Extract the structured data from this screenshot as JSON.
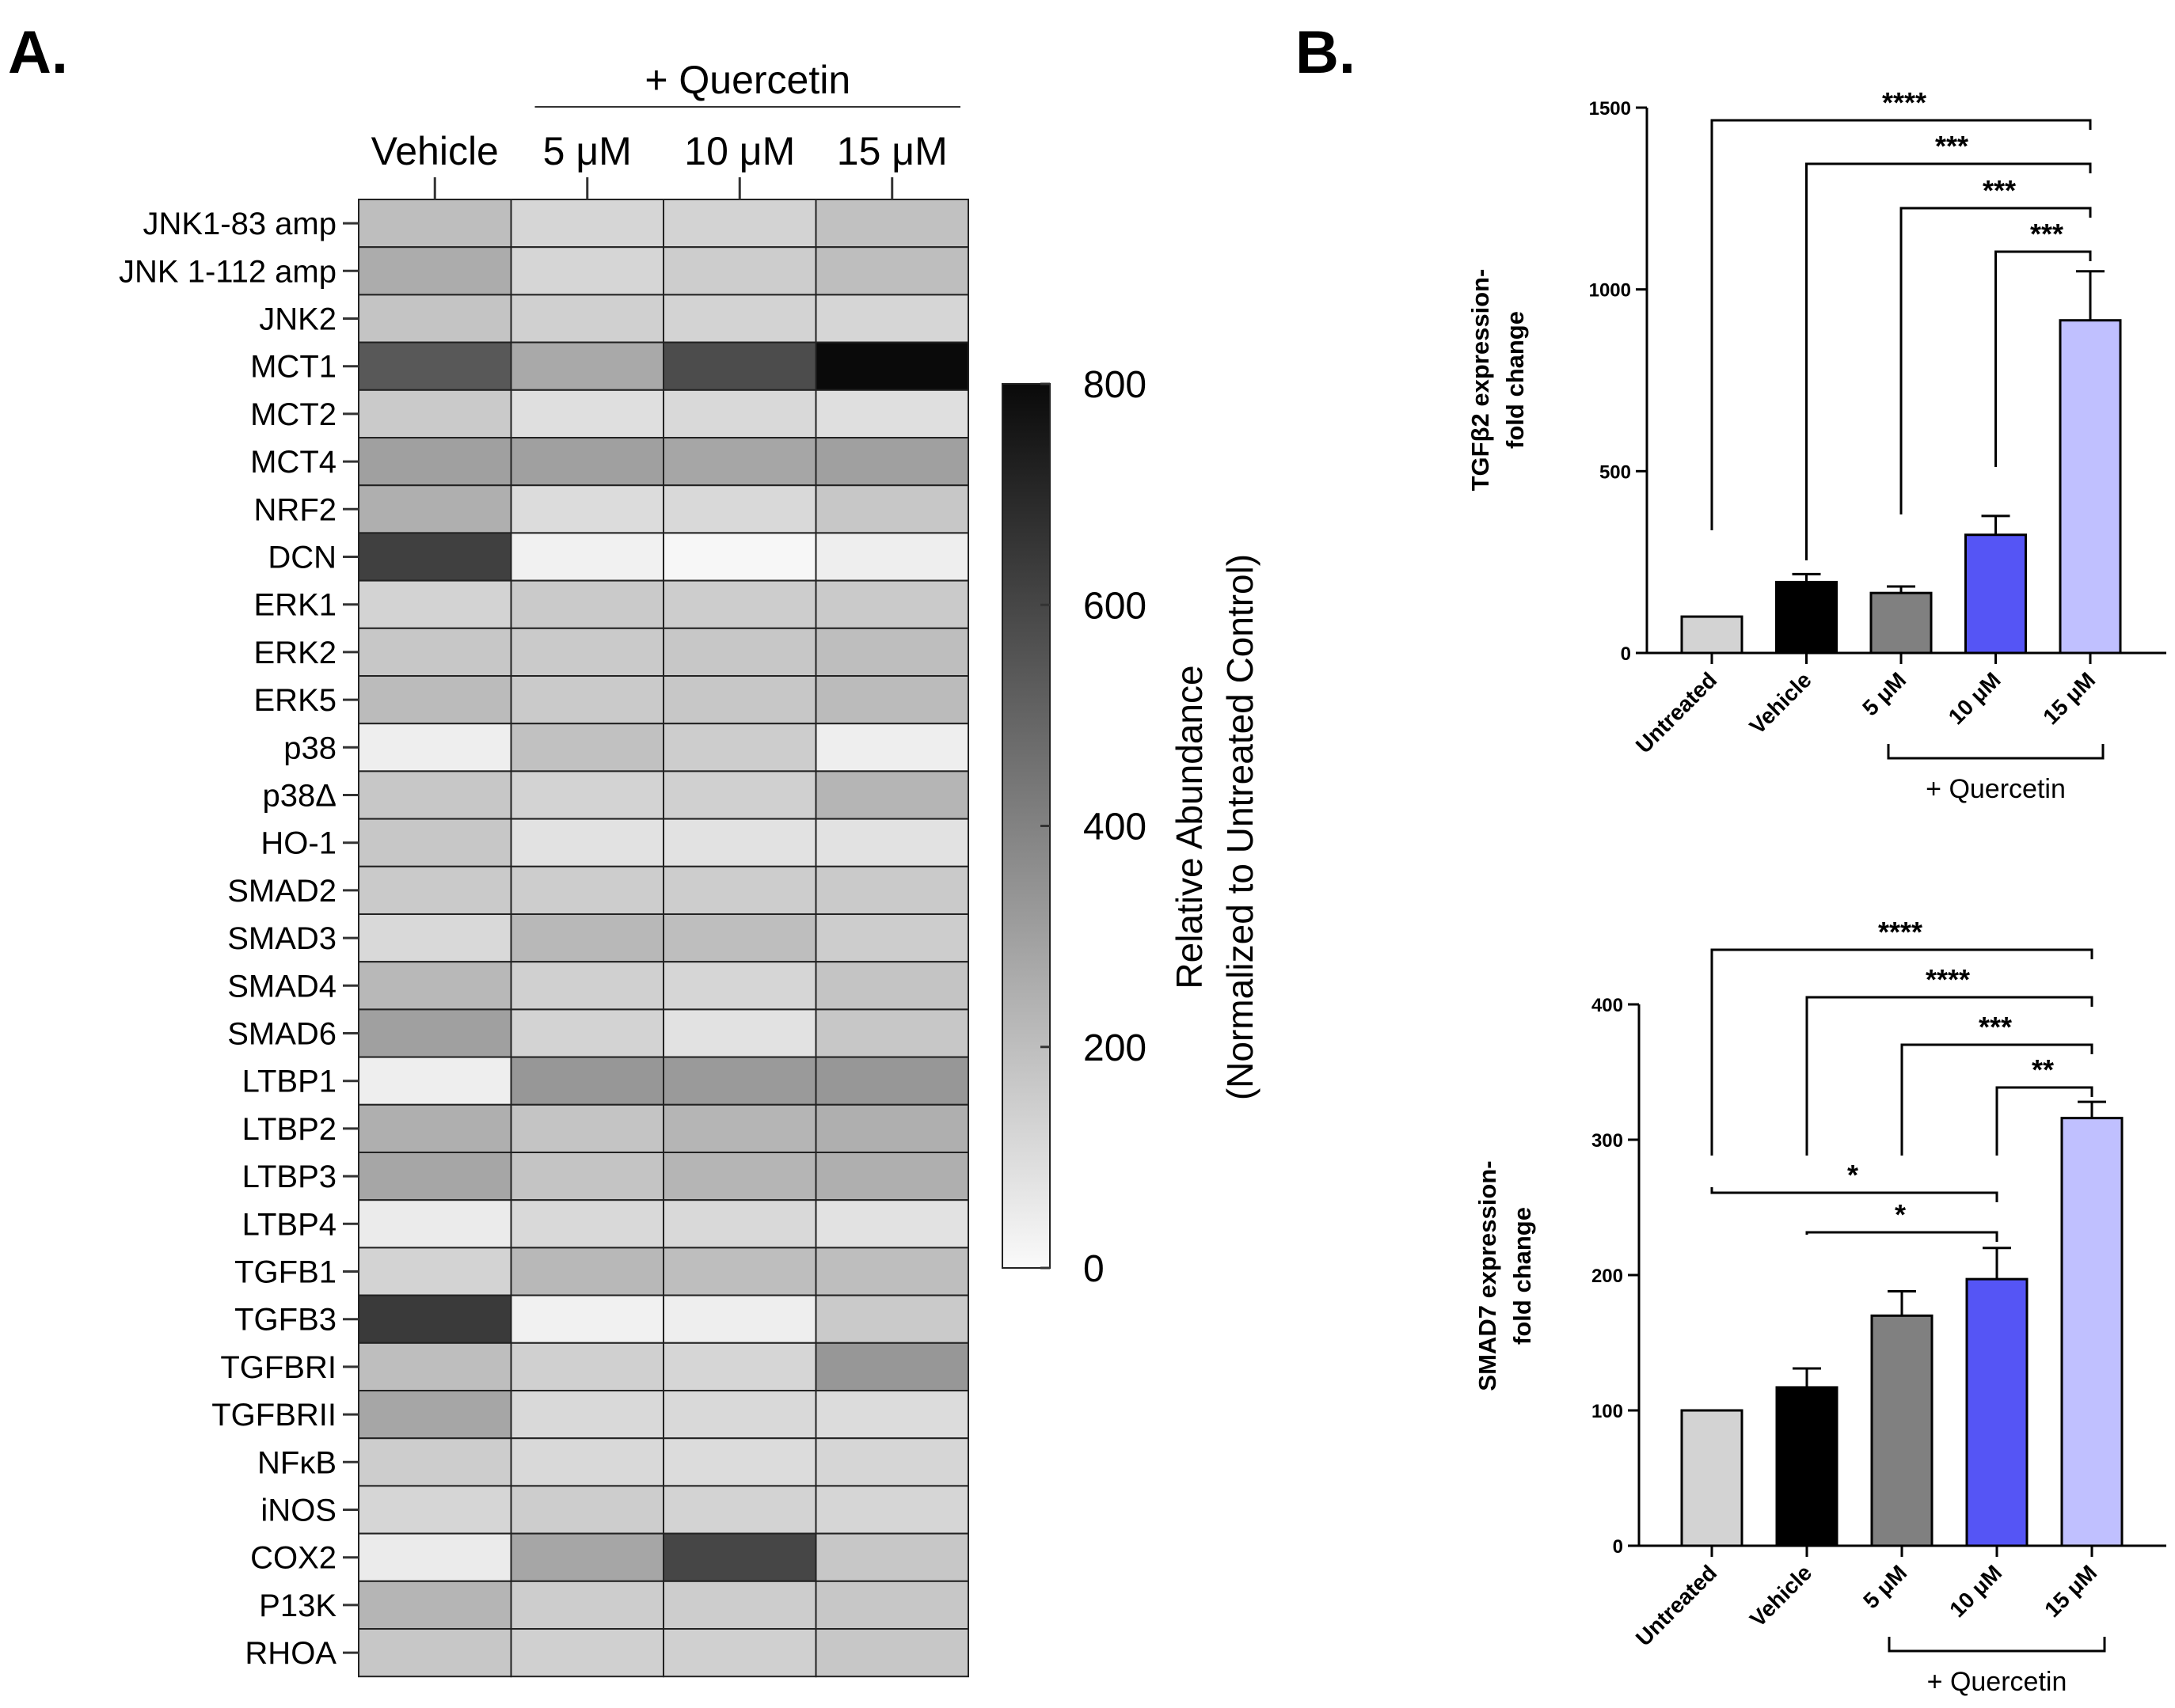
{
  "panels": {
    "a_label": "A.",
    "b_label": "B."
  },
  "chart_data": [
    {
      "type": "heatmap",
      "treatment_label": "+  Quercetin",
      "columns": [
        "Vehicle",
        "5 μM",
        "10 μM",
        "15 μM"
      ],
      "rows": [
        "JNK1-83 amp",
        "JNK 1-112 amp",
        "JNK2",
        "MCT1",
        "MCT2",
        "MCT4",
        "NRF2",
        "DCN",
        "ERK1",
        "ERK2",
        "ERK5",
        "p38",
        "p38Δ",
        "HO-1",
        "SMAD2",
        "SMAD3",
        "SMAD4",
        "SMAD6",
        "LTBP1",
        "LTBP2",
        "LTBP3",
        "LTBP4",
        "TGFB1",
        "TGFB3",
        "TGFBRI",
        "TGFBRII",
        "NFκB",
        "iNOS",
        "COX2",
        "P13K",
        "RHOA"
      ],
      "values": [
        [
          200,
          120,
          130,
          190
        ],
        [
          260,
          120,
          150,
          200
        ],
        [
          180,
          140,
          130,
          120
        ],
        [
          540,
          270,
          580,
          800
        ],
        [
          160,
          90,
          110,
          90
        ],
        [
          300,
          300,
          280,
          300
        ],
        [
          250,
          100,
          110,
          170
        ],
        [
          620,
          30,
          10,
          40
        ],
        [
          130,
          160,
          150,
          160
        ],
        [
          170,
          160,
          170,
          200
        ],
        [
          210,
          160,
          170,
          210
        ],
        [
          40,
          190,
          150,
          40
        ],
        [
          170,
          130,
          140,
          230
        ],
        [
          170,
          80,
          80,
          80
        ],
        [
          160,
          150,
          150,
          160
        ],
        [
          110,
          220,
          200,
          150
        ],
        [
          220,
          140,
          120,
          180
        ],
        [
          300,
          130,
          80,
          170
        ],
        [
          40,
          330,
          320,
          330
        ],
        [
          250,
          180,
          230,
          250
        ],
        [
          280,
          180,
          230,
          250
        ],
        [
          50,
          110,
          110,
          80
        ],
        [
          130,
          220,
          200,
          200
        ],
        [
          640,
          30,
          40,
          160
        ],
        [
          200,
          140,
          120,
          330
        ],
        [
          280,
          110,
          110,
          100
        ],
        [
          150,
          110,
          100,
          120
        ],
        [
          120,
          150,
          130,
          120
        ],
        [
          50,
          280,
          600,
          170
        ],
        [
          230,
          150,
          150,
          170
        ],
        [
          170,
          140,
          140,
          170
        ]
      ],
      "colorbar": {
        "min": 0,
        "max": 800,
        "ticks": [
          0,
          200,
          400,
          600,
          800
        ],
        "title_line1": "Relative Abundance",
        "title_line2": "(Normalized to Untreated Control)"
      }
    },
    {
      "type": "bar",
      "categories": [
        "Untreated",
        "Vehicle",
        "5 μM",
        "10 μM",
        "15 μM"
      ],
      "values": [
        100,
        195,
        165,
        325,
        915
      ],
      "errors": [
        0,
        22,
        18,
        52,
        135
      ],
      "colors": [
        "#d3d3d3",
        "#000000",
        "#808080",
        "#5555f5",
        "#c0c0ff"
      ],
      "ylabel_line1": "TGFβ2 expression-",
      "ylabel_line2": "fold change",
      "ylim": [
        0,
        1500
      ],
      "yticks": [
        0,
        500,
        1000,
        1500
      ],
      "group_label": "+ Quercetin",
      "significance": [
        {
          "from": 0,
          "to": 4,
          "label": "****"
        },
        {
          "from": 1,
          "to": 4,
          "label": "***"
        },
        {
          "from": 2,
          "to": 4,
          "label": "***"
        },
        {
          "from": 3,
          "to": 4,
          "label": "***"
        }
      ]
    },
    {
      "type": "bar",
      "categories": [
        "Untreated",
        "Vehicle",
        "5 μM",
        "10 μM",
        "15 μM"
      ],
      "values": [
        100,
        117,
        170,
        197,
        316
      ],
      "errors": [
        0,
        14,
        18,
        23,
        12
      ],
      "colors": [
        "#d3d3d3",
        "#000000",
        "#808080",
        "#5555f5",
        "#c0c0ff"
      ],
      "ylabel_line1": "SMAD7 expression-",
      "ylabel_line2": "fold change",
      "ylim": [
        0,
        400
      ],
      "yticks": [
        0,
        100,
        200,
        300,
        400
      ],
      "group_label": "+ Quercetin",
      "significance": [
        {
          "from": 0,
          "to": 4,
          "label": "****"
        },
        {
          "from": 1,
          "to": 4,
          "label": "****"
        },
        {
          "from": 2,
          "to": 4,
          "label": "***"
        },
        {
          "from": 3,
          "to": 4,
          "label": "**"
        },
        {
          "from": 0,
          "to": 3,
          "label": "*"
        },
        {
          "from": 1,
          "to": 3,
          "label": "*"
        }
      ]
    }
  ]
}
